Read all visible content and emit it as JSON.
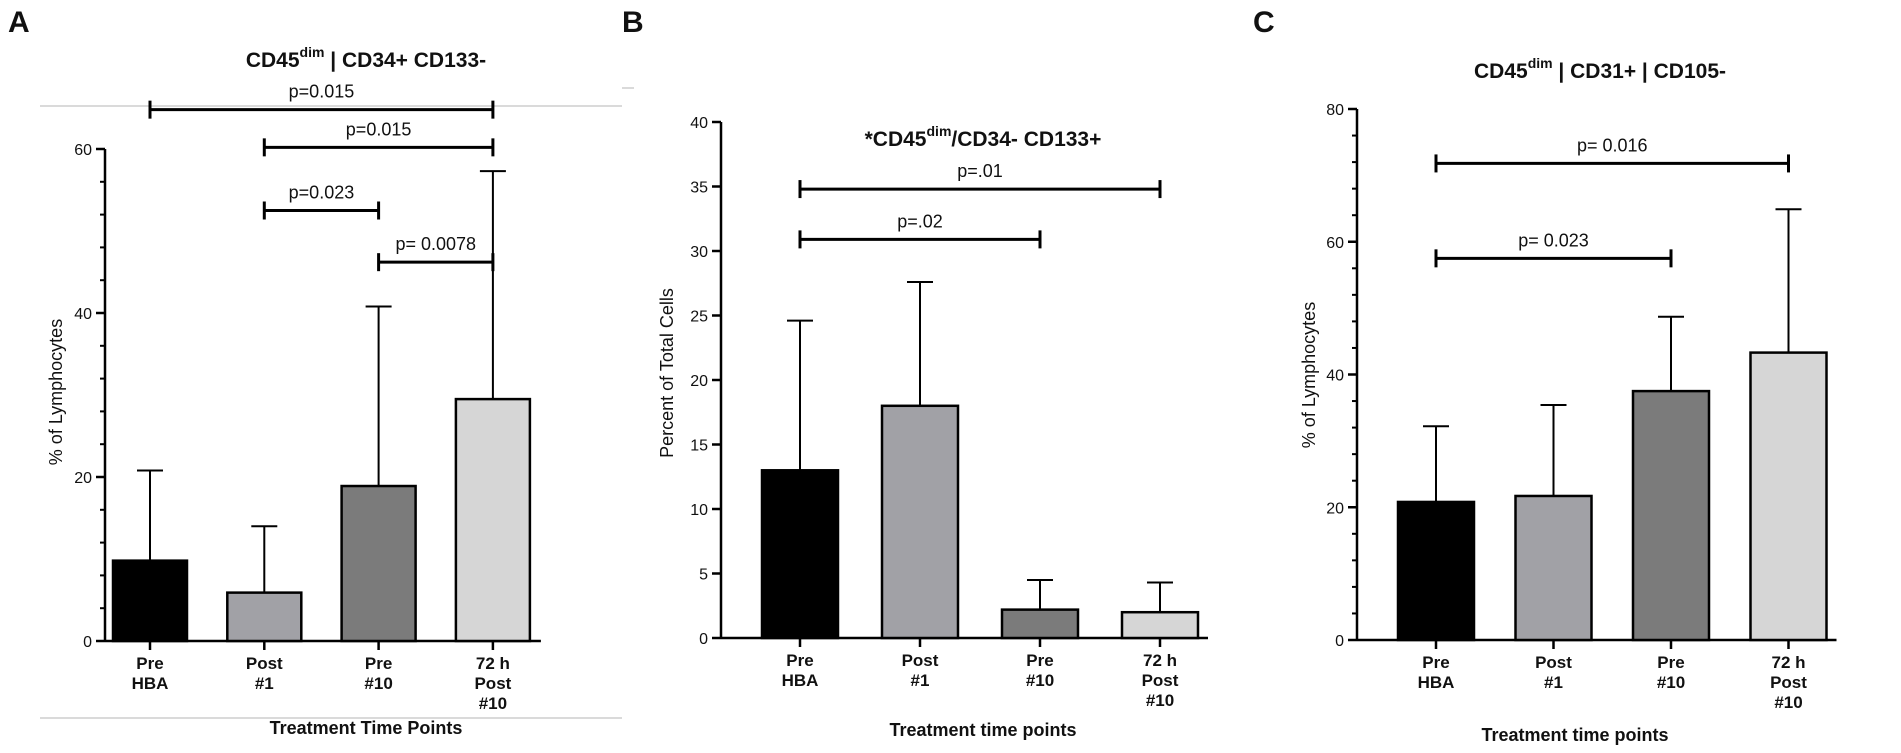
{
  "chart_data": [
    {
      "panel": "A",
      "type": "bar",
      "title": {
        "prefix": "CD45",
        "sup": "dim",
        "suffix": " | CD34+ CD133-"
      },
      "xlabel": "Treatment Time Points",
      "ylabel": "% of Lymphocytes",
      "ylim": [
        0,
        60
      ],
      "yticks": [
        0,
        20,
        40,
        60
      ],
      "categories": [
        [
          "Pre",
          "HBA"
        ],
        [
          "Post",
          "#1"
        ],
        [
          "Pre",
          "#10"
        ],
        [
          "72 h",
          "Post",
          "#10"
        ]
      ],
      "values": [
        9.8,
        5.9,
        18.9,
        29.5
      ],
      "error_upper": [
        20.8,
        14.0,
        40.8,
        57.3
      ],
      "colors": [
        "#000000",
        "#a1a1a6",
        "#7b7b7b",
        "#d6d6d6"
      ],
      "comparisons": [
        {
          "from": 0,
          "to": 3,
          "label": "p=0.015",
          "y": 64.8
        },
        {
          "from": 1,
          "to": 3,
          "label": "p=0.015",
          "y": 60.2
        },
        {
          "from": 1,
          "to": 2,
          "label": "p=0.023",
          "y": 52.5
        },
        {
          "from": 2,
          "to": 3,
          "label": "p= 0.0078",
          "y": 46.2
        }
      ]
    },
    {
      "panel": "B",
      "type": "bar",
      "title": {
        "prefix": "*CD45",
        "sup": "dim",
        "suffix": "/CD34- CD133+"
      },
      "xlabel": "Treatment time points",
      "ylabel": "Percent of Total Cells",
      "ylim": [
        0,
        40
      ],
      "yticks": [
        0,
        5,
        10,
        15,
        20,
        25,
        30,
        35,
        40
      ],
      "categories": [
        [
          "Pre",
          "HBA"
        ],
        [
          "Post",
          "#1"
        ],
        [
          "Pre",
          "#10"
        ],
        [
          "72 h",
          "Post",
          "#10"
        ]
      ],
      "values": [
        13.0,
        18.0,
        2.2,
        2.0
      ],
      "error_upper": [
        24.6,
        27.6,
        4.5,
        4.3
      ],
      "colors": [
        "#000000",
        "#a1a1a6",
        "#7b7b7b",
        "#d6d6d6"
      ],
      "comparisons": [
        {
          "from": 0,
          "to": 3,
          "label": "p=.01",
          "y": 34.8
        },
        {
          "from": 0,
          "to": 2,
          "label": "p=.02",
          "y": 30.9
        }
      ]
    },
    {
      "panel": "C",
      "type": "bar",
      "title": {
        "prefix": "CD45",
        "sup": "dim",
        "suffix": " | CD31+ | CD105-"
      },
      "xlabel": "Treatment time points",
      "ylabel": "% of Lymphocytes",
      "ylim": [
        0,
        80
      ],
      "yticks": [
        0,
        20,
        40,
        60,
        80
      ],
      "categories": [
        [
          "Pre",
          "HBA"
        ],
        [
          "Post",
          "#1"
        ],
        [
          "Pre",
          "#10"
        ],
        [
          "72 h",
          "Post",
          "#10"
        ]
      ],
      "values": [
        20.8,
        21.7,
        37.5,
        43.3
      ],
      "error_upper": [
        32.2,
        35.4,
        48.7,
        64.9
      ],
      "colors": [
        "#000000",
        "#a1a1a6",
        "#7b7b7b",
        "#d6d6d6"
      ],
      "comparisons": [
        {
          "from": 0,
          "to": 3,
          "label": "p= 0.016",
          "y": 71.8
        },
        {
          "from": 0,
          "to": 2,
          "label": "p= 0.023",
          "y": 57.5
        }
      ]
    }
  ]
}
